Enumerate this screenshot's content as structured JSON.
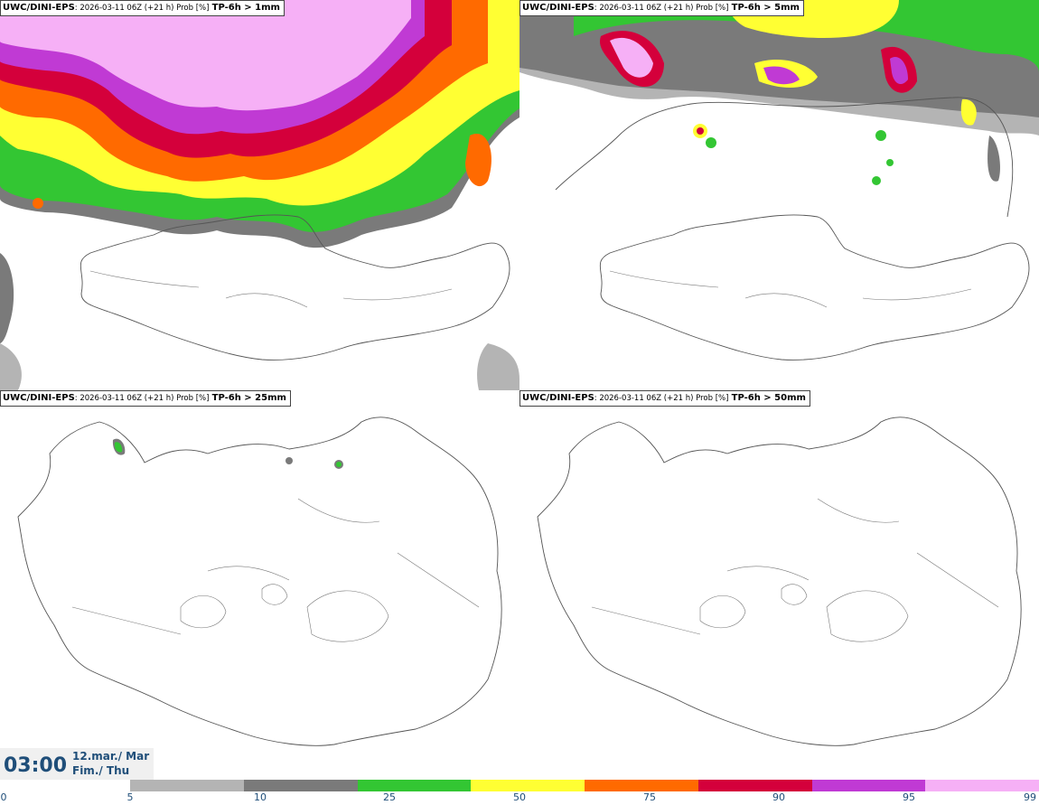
{
  "panels": [
    {
      "model": "UWC/DINI-EPS",
      "meta": ": 2026-03-11 06Z (+21 h) Prob [%]",
      "field": "TP-6h > 1mm"
    },
    {
      "model": "UWC/DINI-EPS",
      "meta": ": 2026-03-11 06Z (+21 h) Prob [%]",
      "field": "TP-6h > 5mm"
    },
    {
      "model": "UWC/DINI-EPS",
      "meta": ": 2026-03-11 06Z (+21 h) Prob [%]",
      "field": "TP-6h > 25mm"
    },
    {
      "model": "UWC/DINI-EPS",
      "meta": ": 2026-03-11 06Z (+21 h) Prob [%]",
      "field": "TP-6h > 50mm"
    }
  ],
  "valid_time": {
    "time": "03:00",
    "date_line1": "12.mar./ Mar",
    "date_line2": "Fim./ Thu"
  },
  "colorbar": {
    "ticks": [
      "0",
      "5",
      "10",
      "25",
      "50",
      "75",
      "90",
      "95",
      "99"
    ],
    "colors": [
      "#b4b4b4",
      "#7a7a7a",
      "#33c633",
      "#ffff33",
      "#ff6a00",
      "#d4003b",
      "#c03ad4",
      "#f6b0f6"
    ]
  },
  "colors": {
    "coast": "#555555",
    "label_blue": "#1f4e79"
  }
}
